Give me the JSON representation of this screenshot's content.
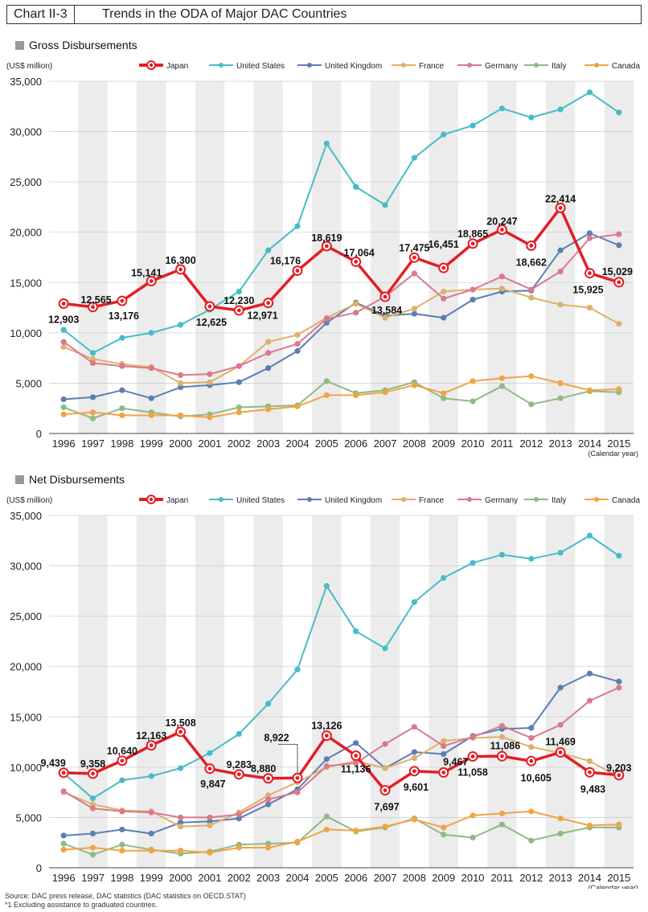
{
  "header": {
    "tag": "Chart II-3",
    "title": "Trends in the ODA of Major DAC Countries"
  },
  "footer": {
    "source": "Source: DAC press release, DAC statistics (DAC statistics on OECD.STAT)",
    "note": "*1 Excluding assistance to graduated countries."
  },
  "colors": {
    "Japan": "#e41d25",
    "United States": "#47bcc7",
    "United Kingdom": "#5a7fb5",
    "France": "#dfb06a",
    "Germany": "#d9798e",
    "Italy": "#8fba83",
    "Canada": "#f1a443",
    "band": "#ececec",
    "grid": "#cfcfcf",
    "section_marker": "#999999"
  },
  "chart_data": [
    {
      "type": "line",
      "title": "Gross Disbursements",
      "ylabel": "(US$ million)",
      "xlabel": "(Calendar year)",
      "ylim": [
        0,
        35000
      ],
      "yticks": [
        "0",
        "5,000",
        "10,000",
        "15,000",
        "20,000",
        "25,000",
        "30,000",
        "35,000"
      ],
      "categories": [
        "1996",
        "1997",
        "1998",
        "1999",
        "2000",
        "2001",
        "2002",
        "2003",
        "2004",
        "2005",
        "2006",
        "2007",
        "2008",
        "2009",
        "2010",
        "2011",
        "2012",
        "2013",
        "2014",
        "2015"
      ],
      "legend": [
        "Japan",
        "United States",
        "United Kingdom",
        "France",
        "Germany",
        "Italy",
        "Canada"
      ],
      "series": [
        {
          "name": "Japan",
          "values": [
            12903,
            12565,
            13176,
            15141,
            16300,
            12625,
            12230,
            12971,
            16176,
            18619,
            17064,
            13584,
            17475,
            16451,
            18865,
            20247,
            18662,
            22414,
            15925,
            15029
          ],
          "labels": [
            "12,903",
            "12,565",
            "13,176",
            "15,141",
            "16,300",
            "12,625",
            "12,230",
            "12,971",
            "16,176",
            "18,619",
            "17,064",
            "13,584",
            "17,475",
            "16,451",
            "18,865",
            "20,247",
            "18,662",
            "22,414",
            "15,925",
            "15,029"
          ]
        },
        {
          "name": "United States",
          "values": [
            10300,
            8000,
            9500,
            10000,
            10800,
            12300,
            14100,
            18200,
            20600,
            28800,
            24500,
            22700,
            27400,
            29700,
            30600,
            32300,
            31400,
            32200,
            33900,
            31900
          ]
        },
        {
          "name": "United Kingdom",
          "values": [
            3400,
            3600,
            4300,
            3500,
            4600,
            4800,
            5100,
            6500,
            8200,
            11000,
            13000,
            11700,
            11900,
            11500,
            13300,
            14100,
            14200,
            18200,
            19900,
            18700
          ]
        },
        {
          "name": "France",
          "values": [
            8600,
            7400,
            6900,
            6600,
            5000,
            5100,
            6700,
            9100,
            9800,
            11500,
            12900,
            11500,
            12400,
            14100,
            14300,
            14400,
            13500,
            12800,
            12500,
            10900
          ]
        },
        {
          "name": "Germany",
          "values": [
            9100,
            7000,
            6700,
            6500,
            5800,
            5900,
            6700,
            8000,
            8900,
            11400,
            12000,
            13600,
            15900,
            13400,
            14300,
            15600,
            14300,
            16100,
            19400,
            19800
          ]
        },
        {
          "name": "Italy",
          "values": [
            2600,
            1500,
            2500,
            2100,
            1700,
            1900,
            2600,
            2700,
            2800,
            5200,
            4000,
            4300,
            5100,
            3500,
            3200,
            4700,
            2900,
            3500,
            4200,
            4100
          ]
        },
        {
          "name": "Canada",
          "values": [
            1900,
            2100,
            1800,
            1800,
            1800,
            1600,
            2100,
            2400,
            2700,
            3800,
            3800,
            4100,
            4800,
            4000,
            5200,
            5500,
            5700,
            5000,
            4300,
            4400
          ]
        }
      ]
    },
    {
      "type": "line",
      "title": "Net Disbursements",
      "ylabel": "(US$ million)",
      "xlabel": "(Calendar year)",
      "ylim": [
        0,
        35000
      ],
      "yticks": [
        "0",
        "5,000",
        "10,000",
        "15,000",
        "20,000",
        "25,000",
        "30,000",
        "35,000"
      ],
      "categories": [
        "1996",
        "1997",
        "1998",
        "1999",
        "2000",
        "2001",
        "2002",
        "2003",
        "2004",
        "2005",
        "2006",
        "2007",
        "2008",
        "2009",
        "2010",
        "2011",
        "2012",
        "2013",
        "2014",
        "2015"
      ],
      "legend": [
        "Japan",
        "United States",
        "United Kingdom",
        "France",
        "Germany",
        "Italy",
        "Canada"
      ],
      "series": [
        {
          "name": "Japan",
          "values": [
            9439,
            9358,
            10640,
            12163,
            13508,
            9847,
            9283,
            8880,
            8922,
            13126,
            11136,
            7697,
            9601,
            9467,
            11058,
            11086,
            10605,
            11469,
            9483,
            9203
          ],
          "labels": [
            "9,439",
            "9,358",
            "10,640",
            "12,163",
            "13,508",
            "9,847",
            "9,283",
            "8,880",
            "8,922",
            "13,126",
            "11,136",
            "7,697",
            "9,601",
            "9,467",
            "11,058",
            "11,086",
            "10,605",
            "11,469",
            "9,483",
            "9,203"
          ]
        },
        {
          "name": "United States",
          "values": [
            9400,
            6900,
            8700,
            9100,
            9900,
            11400,
            13300,
            16300,
            19700,
            28000,
            23500,
            21800,
            26400,
            28800,
            30300,
            31100,
            30700,
            31300,
            33000,
            31000
          ]
        },
        {
          "name": "United Kingdom",
          "values": [
            3200,
            3400,
            3800,
            3400,
            4500,
            4600,
            4900,
            6300,
            7800,
            10800,
            12400,
            9900,
            11500,
            11300,
            13100,
            13800,
            13900,
            17900,
            19300,
            18500
          ]
        },
        {
          "name": "France",
          "values": [
            7500,
            6300,
            5700,
            5600,
            4100,
            4200,
            5500,
            7200,
            8500,
            10000,
            10600,
            9900,
            10900,
            12600,
            12900,
            13000,
            12000,
            11400,
            10600,
            9000
          ]
        },
        {
          "name": "Germany",
          "values": [
            7600,
            5900,
            5600,
            5500,
            5000,
            5000,
            5300,
            6800,
            7500,
            10100,
            10400,
            12300,
            14000,
            12100,
            13000,
            14100,
            12900,
            14200,
            16600,
            17900
          ]
        },
        {
          "name": "Italy",
          "values": [
            2400,
            1300,
            2300,
            1800,
            1400,
            1600,
            2300,
            2400,
            2500,
            5100,
            3600,
            4000,
            4900,
            3300,
            3000,
            4300,
            2700,
            3400,
            4000,
            4000
          ]
        },
        {
          "name": "Canada",
          "values": [
            1800,
            2000,
            1700,
            1700,
            1700,
            1500,
            2000,
            2000,
            2600,
            3800,
            3700,
            4100,
            4800,
            4000,
            5200,
            5400,
            5600,
            4900,
            4200,
            4300
          ]
        }
      ]
    }
  ]
}
